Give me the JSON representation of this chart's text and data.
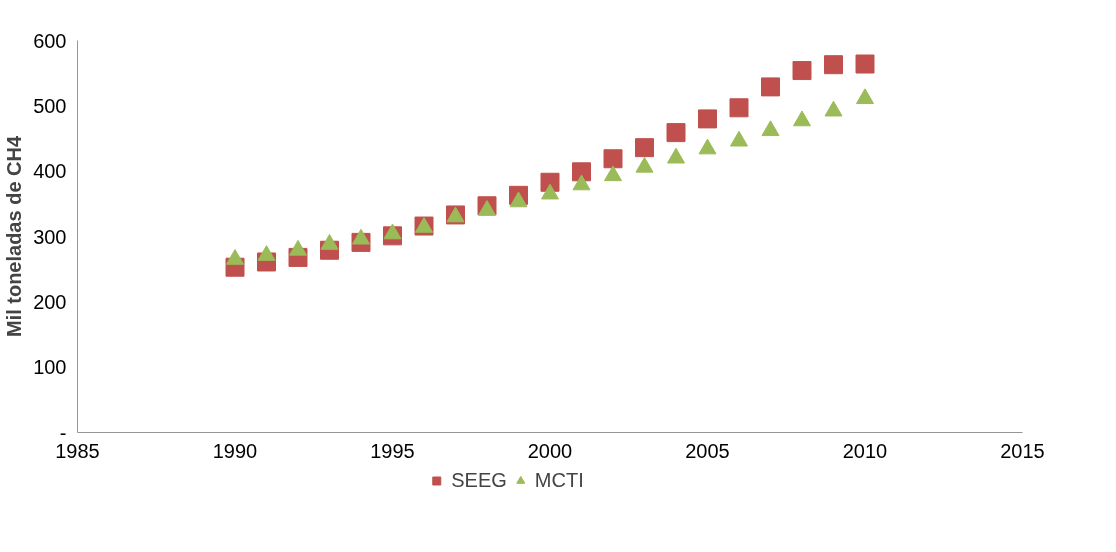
{
  "chart_data": {
    "type": "scatter",
    "ylabel": "Mil toneladas de CH4",
    "x": [
      1990,
      1991,
      1992,
      1993,
      1994,
      1995,
      1996,
      1997,
      1998,
      1999,
      2000,
      2001,
      2002,
      2003,
      2004,
      2005,
      2006,
      2007,
      2008,
      2009,
      2010
    ],
    "series": [
      {
        "name": "SEEG",
        "color": "#c0504d",
        "marker": "square",
        "values": [
          253,
          261,
          268,
          279,
          291,
          301,
          316,
          333,
          347,
          363,
          383,
          399,
          419,
          436,
          459,
          480,
          497,
          529,
          554,
          563,
          564
        ]
      },
      {
        "name": "MCTI",
        "color": "#9bbb59",
        "marker": "triangle",
        "values": [
          265,
          271,
          279,
          288,
          296,
          304,
          314,
          330,
          340,
          353,
          365,
          379,
          393,
          406,
          420,
          434,
          446,
          462,
          477,
          492,
          511
        ]
      }
    ],
    "xlim": [
      1985,
      2015
    ],
    "xticks": [
      1985,
      1990,
      1995,
      2000,
      2005,
      2010,
      2015
    ],
    "ylim": [
      0,
      600
    ],
    "yticks": [
      {
        "value": 0,
        "label": "-"
      },
      100,
      200,
      300,
      400,
      500,
      600
    ],
    "grid": false,
    "legend": "bottom"
  }
}
